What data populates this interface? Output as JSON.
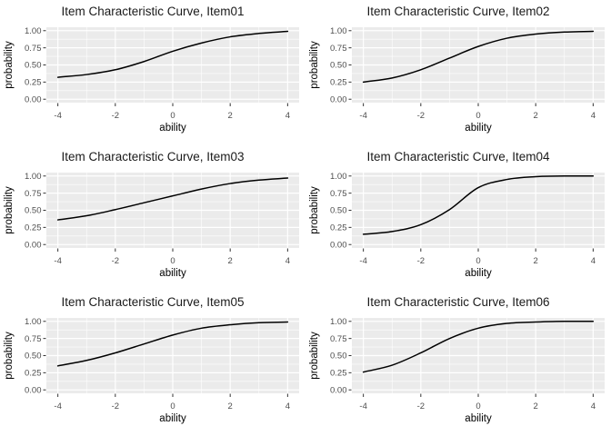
{
  "figure": {
    "kind": "plot-grid",
    "rows": 3,
    "cols": 2,
    "background": "#ffffff"
  },
  "theme": {
    "panel_bg": "#ebebeb",
    "grid_major_color": "#ffffff",
    "grid_minor_color": "#ffffff",
    "curve_color": "#000000",
    "title_color": "#1a1a1a",
    "axis_title_color": "#000000",
    "tick_label_color": "#4d4d4d",
    "tick_mark_color": "#333333"
  },
  "chart_data": [
    {
      "type": "line",
      "title": "Item Characteristic Curve, Item01",
      "xlabel": "ability",
      "ylabel": "probability",
      "xlim": [
        -4.4,
        4.4
      ],
      "ylim": [
        -0.05,
        1.05
      ],
      "x_ticks": [
        -4,
        -2,
        0,
        2,
        4
      ],
      "x_tick_labels": [
        "-4",
        "-2",
        "0",
        "2",
        "4"
      ],
      "x_minor": [
        -3,
        -1,
        1,
        3
      ],
      "y_ticks": [
        0,
        0.25,
        0.5,
        0.75,
        1
      ],
      "y_tick_labels": [
        "0.00",
        "0.25",
        "0.50",
        "0.75",
        "1.00"
      ],
      "y_minor": [
        0.125,
        0.375,
        0.625,
        0.875
      ],
      "grid": true,
      "legend": "none",
      "series": [
        {
          "name": "ICC Item01",
          "x": [
            -4,
            -3,
            -2,
            -1,
            0,
            1,
            2,
            3,
            4
          ],
          "y": [
            0.32,
            0.36,
            0.43,
            0.55,
            0.7,
            0.82,
            0.91,
            0.96,
            0.99
          ]
        }
      ]
    },
    {
      "type": "line",
      "title": "Item Characteristic Curve, Item02",
      "xlabel": "ability",
      "ylabel": "probability",
      "xlim": [
        -4.4,
        4.4
      ],
      "ylim": [
        -0.05,
        1.05
      ],
      "x_ticks": [
        -4,
        -2,
        0,
        2,
        4
      ],
      "x_tick_labels": [
        "-4",
        "-2",
        "0",
        "2",
        "4"
      ],
      "x_minor": [
        -3,
        -1,
        1,
        3
      ],
      "y_ticks": [
        0,
        0.25,
        0.5,
        0.75,
        1
      ],
      "y_tick_labels": [
        "0.00",
        "0.25",
        "0.50",
        "0.75",
        "1.00"
      ],
      "y_minor": [
        0.125,
        0.375,
        0.625,
        0.875
      ],
      "grid": true,
      "legend": "none",
      "series": [
        {
          "name": "ICC Item02",
          "x": [
            -4,
            -3,
            -2,
            -1,
            0,
            1,
            2,
            3,
            4
          ],
          "y": [
            0.25,
            0.31,
            0.43,
            0.6,
            0.77,
            0.89,
            0.95,
            0.98,
            0.99
          ]
        }
      ]
    },
    {
      "type": "line",
      "title": "Item Characteristic Curve, Item03",
      "xlabel": "ability",
      "ylabel": "probability",
      "xlim": [
        -4.4,
        4.4
      ],
      "ylim": [
        -0.05,
        1.05
      ],
      "x_ticks": [
        -4,
        -2,
        0,
        2,
        4
      ],
      "x_tick_labels": [
        "-4",
        "-2",
        "0",
        "2",
        "4"
      ],
      "x_minor": [
        -3,
        -1,
        1,
        3
      ],
      "y_ticks": [
        0,
        0.25,
        0.5,
        0.75,
        1
      ],
      "y_tick_labels": [
        "0.00",
        "0.25",
        "0.50",
        "0.75",
        "1.00"
      ],
      "y_minor": [
        0.125,
        0.375,
        0.625,
        0.875
      ],
      "grid": true,
      "legend": "none",
      "series": [
        {
          "name": "ICC Item03",
          "x": [
            -4,
            -3,
            -2,
            -1,
            0,
            1,
            2,
            3,
            4
          ],
          "y": [
            0.36,
            0.42,
            0.51,
            0.61,
            0.71,
            0.81,
            0.89,
            0.94,
            0.97
          ]
        }
      ]
    },
    {
      "type": "line",
      "title": "Item Characteristic Curve, Item04",
      "xlabel": "ability",
      "ylabel": "probability",
      "xlim": [
        -4.4,
        4.4
      ],
      "ylim": [
        -0.05,
        1.05
      ],
      "x_ticks": [
        -4,
        -2,
        0,
        2,
        4
      ],
      "x_tick_labels": [
        "-4",
        "-2",
        "0",
        "2",
        "4"
      ],
      "x_minor": [
        -3,
        -1,
        1,
        3
      ],
      "y_ticks": [
        0,
        0.25,
        0.5,
        0.75,
        1
      ],
      "y_tick_labels": [
        "0.00",
        "0.25",
        "0.50",
        "0.75",
        "1.00"
      ],
      "y_minor": [
        0.125,
        0.375,
        0.625,
        0.875
      ],
      "grid": true,
      "legend": "none",
      "series": [
        {
          "name": "ICC Item04",
          "x": [
            -4,
            -3,
            -2,
            -1,
            0,
            1,
            2,
            3,
            4
          ],
          "y": [
            0.15,
            0.19,
            0.29,
            0.51,
            0.83,
            0.95,
            0.99,
            1.0,
            1.0
          ]
        }
      ]
    },
    {
      "type": "line",
      "title": "Item Characteristic Curve, Item05",
      "xlabel": "ability",
      "ylabel": "probability",
      "xlim": [
        -4.4,
        4.4
      ],
      "ylim": [
        -0.05,
        1.05
      ],
      "x_ticks": [
        -4,
        -2,
        0,
        2,
        4
      ],
      "x_tick_labels": [
        "-4",
        "-2",
        "0",
        "2",
        "4"
      ],
      "x_minor": [
        -3,
        -1,
        1,
        3
      ],
      "y_ticks": [
        0,
        0.25,
        0.5,
        0.75,
        1
      ],
      "y_tick_labels": [
        "0.00",
        "0.25",
        "0.50",
        "0.75",
        "1.00"
      ],
      "y_minor": [
        0.125,
        0.375,
        0.625,
        0.875
      ],
      "grid": true,
      "legend": "none",
      "series": [
        {
          "name": "ICC Item05",
          "x": [
            -4,
            -3,
            -2,
            -1,
            0,
            1,
            2,
            3,
            4
          ],
          "y": [
            0.35,
            0.43,
            0.54,
            0.67,
            0.8,
            0.9,
            0.95,
            0.98,
            0.99
          ]
        }
      ]
    },
    {
      "type": "line",
      "title": "Item Characteristic Curve, Item06",
      "xlabel": "ability",
      "ylabel": "probability",
      "xlim": [
        -4.4,
        4.4
      ],
      "ylim": [
        -0.05,
        1.05
      ],
      "x_ticks": [
        -4,
        -2,
        0,
        2,
        4
      ],
      "x_tick_labels": [
        "-4",
        "-2",
        "0",
        "2",
        "4"
      ],
      "x_minor": [
        -3,
        -1,
        1,
        3
      ],
      "y_ticks": [
        0,
        0.25,
        0.5,
        0.75,
        1
      ],
      "y_tick_labels": [
        "0.00",
        "0.25",
        "0.50",
        "0.75",
        "1.00"
      ],
      "y_minor": [
        0.125,
        0.375,
        0.625,
        0.875
      ],
      "grid": true,
      "legend": "none",
      "series": [
        {
          "name": "ICC Item06",
          "x": [
            -4,
            -3,
            -2,
            -1,
            0,
            1,
            2,
            3,
            4
          ],
          "y": [
            0.26,
            0.36,
            0.54,
            0.75,
            0.9,
            0.97,
            0.99,
            1.0,
            1.0
          ]
        }
      ]
    }
  ]
}
